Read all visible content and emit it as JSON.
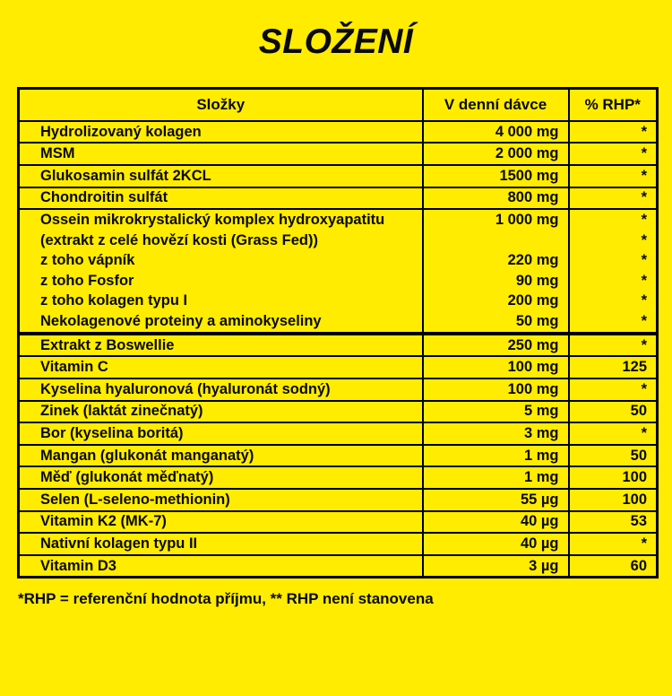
{
  "title": "SLOŽENÍ",
  "colors": {
    "background": "#FFEC00",
    "text": "#0A0A0A",
    "border": "#000000"
  },
  "table": {
    "headers": [
      "Složky",
      "V denní dávce",
      "% RHP*"
    ],
    "rows": [
      {
        "name": "Hydrolizovaný kolagen",
        "dose": "4 000 mg",
        "rhp": "*"
      },
      {
        "name": "MSM",
        "dose": "2 000 mg",
        "rhp": "*"
      },
      {
        "name": "Glukosamin sulfát 2KCL",
        "dose": "1500 mg",
        "rhp": "*"
      },
      {
        "name": "Chondroitin sulfát",
        "dose": "800 mg",
        "rhp": "*"
      },
      {
        "group": [
          {
            "name": "Ossein mikrokrystalický komplex hydroxyapatitu",
            "dose": "1 000 mg",
            "rhp": "*"
          },
          {
            "name": "(extrakt z celé hovězí kosti (Grass Fed))",
            "dose": "",
            "rhp": "*"
          },
          {
            "name": "z toho vápník",
            "dose": "220 mg",
            "rhp": "*"
          },
          {
            "name": "z toho Fosfor",
            "dose": "90 mg",
            "rhp": "*"
          },
          {
            "name": "z toho kolagen typu I",
            "dose": "200 mg",
            "rhp": "*"
          },
          {
            "name": "Nekolagenové proteiny a aminokyseliny",
            "dose": "50 mg",
            "rhp": "*"
          }
        ]
      },
      {
        "name": "Extrakt z Boswellie",
        "dose": "250 mg",
        "rhp": "*"
      },
      {
        "name": "Vitamin C",
        "dose": "100 mg",
        "rhp": "125"
      },
      {
        "name": "Kyselina hyaluronová (hyaluronát sodný)",
        "dose": "100 mg",
        "rhp": "*"
      },
      {
        "name": "Zinek (laktát zinečnatý)",
        "dose": "5 mg",
        "rhp": "50"
      },
      {
        "name": "Bor (kyselina boritá)",
        "dose": "3 mg",
        "rhp": "*"
      },
      {
        "name": "Mangan (glukonát manganatý)",
        "dose": "1 mg",
        "rhp": "50"
      },
      {
        "name": "Měď (glukonát měďnatý)",
        "dose": "1 mg",
        "rhp": "100"
      },
      {
        "name": "Selen (L-seleno-methionin)",
        "dose": "55 µg",
        "rhp": "100"
      },
      {
        "name": "Vitamin K2 (MK-7)",
        "dose": "40 µg",
        "rhp": "53"
      },
      {
        "name": "Nativní kolagen typu II",
        "dose": "40 µg",
        "rhp": "*"
      },
      {
        "name": "Vitamin D3",
        "dose": "3 µg",
        "rhp": "60"
      }
    ]
  },
  "footnote": "*RHP = referenční hodnota příjmu, ** RHP není stanovena"
}
